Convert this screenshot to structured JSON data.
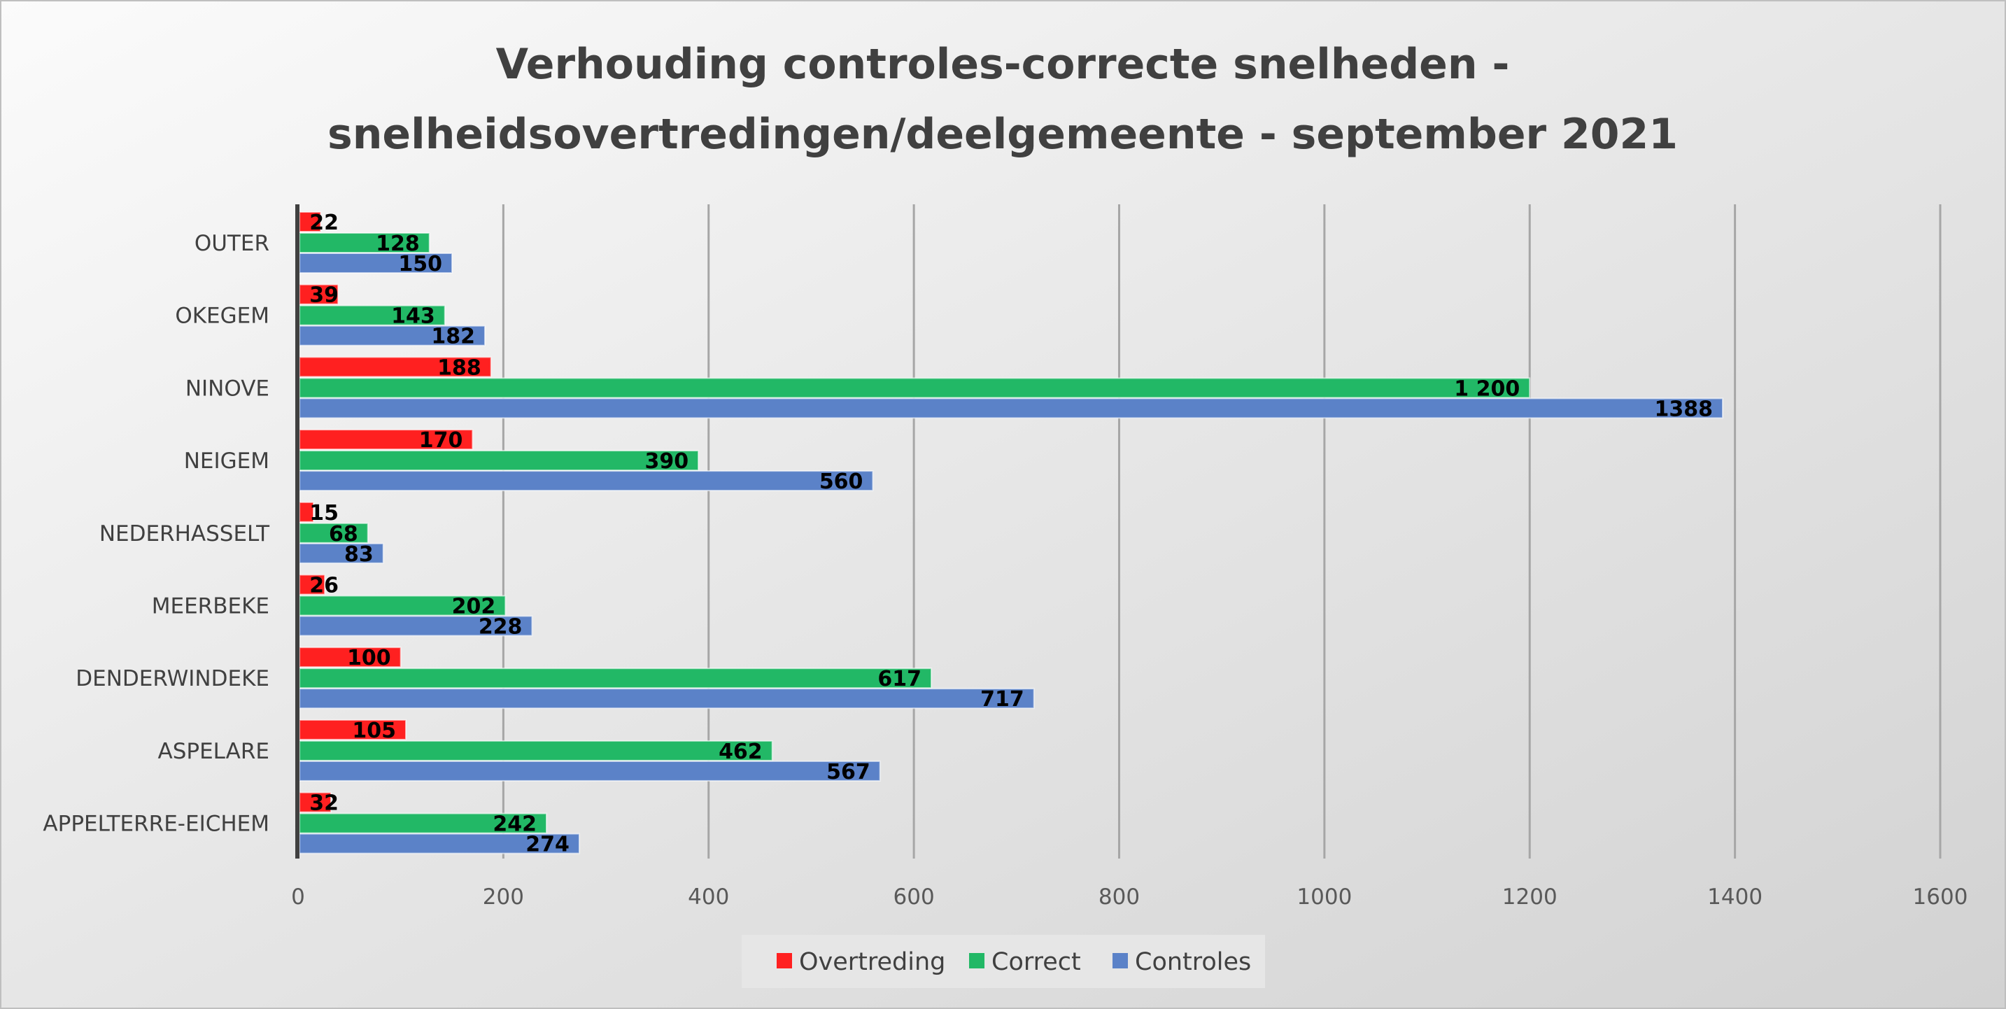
{
  "chart_data": {
    "type": "bar",
    "orientation": "horizontal",
    "title": [
      "Verhouding controles-correcte snelheden -",
      "snelheidsovertredingen/deelgemeente - september 2021"
    ],
    "categories": [
      "OUTER",
      "OKEGEM",
      "NINOVE",
      "NEIGEM",
      "NEDERHASSELT",
      "MEERBEKE",
      "DENDERWINDEKE",
      "ASPELARE",
      "APPELTERRE-EICHEM"
    ],
    "series": [
      {
        "name": "Overtreding",
        "color": "#ff2020",
        "values": [
          22,
          39,
          188,
          170,
          15,
          26,
          100,
          105,
          32
        ],
        "labels": [
          "22",
          "39",
          "188",
          "170",
          "15",
          "26",
          "100",
          "105",
          "32"
        ]
      },
      {
        "name": "Correct",
        "color": "#22b866",
        "values": [
          128,
          143,
          1200,
          390,
          68,
          202,
          617,
          462,
          242
        ],
        "labels": [
          "128",
          "143",
          "1 200",
          "390",
          "68",
          "202",
          "617",
          "462",
          "242"
        ]
      },
      {
        "name": "Controles",
        "color": "#5b82c8",
        "values": [
          150,
          182,
          1388,
          560,
          83,
          228,
          717,
          567,
          274
        ],
        "labels": [
          "150",
          "182",
          "1388",
          "560",
          "83",
          "228",
          "717",
          "567",
          "274"
        ]
      }
    ],
    "xlim": [
      0,
      1600
    ],
    "xticks": [
      "0",
      "200",
      "400",
      "600",
      "800",
      "1000",
      "1200",
      "1400",
      "1600"
    ],
    "grid": "vertical",
    "legend": "bottom"
  }
}
